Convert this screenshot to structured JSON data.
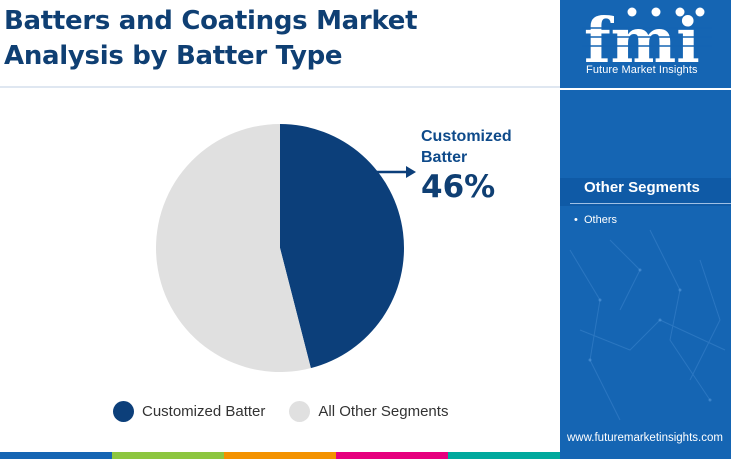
{
  "title": {
    "line1": "Batters and Coatings Market",
    "line2": "Analysis by Batter Type"
  },
  "callout": {
    "label_line1": "Customized",
    "label_line2": "Batter",
    "value": "46%"
  },
  "chart_data": {
    "type": "pie",
    "title": "Batters and Coatings Market Analysis by Batter Type",
    "slices": [
      {
        "label": "Customized Batter",
        "value": 46,
        "color": "#0c3f7a"
      },
      {
        "label": "All Other Segments",
        "value": 54,
        "color": "#e0e0e0"
      }
    ],
    "legend_position": "bottom"
  },
  "legend": [
    {
      "label": "Customized Batter",
      "color": "#0c3f7a"
    },
    {
      "label": "All Other Segments",
      "color": "#e0e0e0"
    }
  ],
  "side_panel": {
    "logo_letters": "fmi",
    "logo_caption": "Future Market Insights",
    "segments_title": "Other Segments",
    "segments": [
      "Others"
    ],
    "website": "www.futuremarketinsights.com",
    "background_color": "#1565b3"
  },
  "bottom_bar_colors": [
    "#1565b3",
    "#8dc63f",
    "#f39200",
    "#e6007e",
    "#00a99d"
  ]
}
